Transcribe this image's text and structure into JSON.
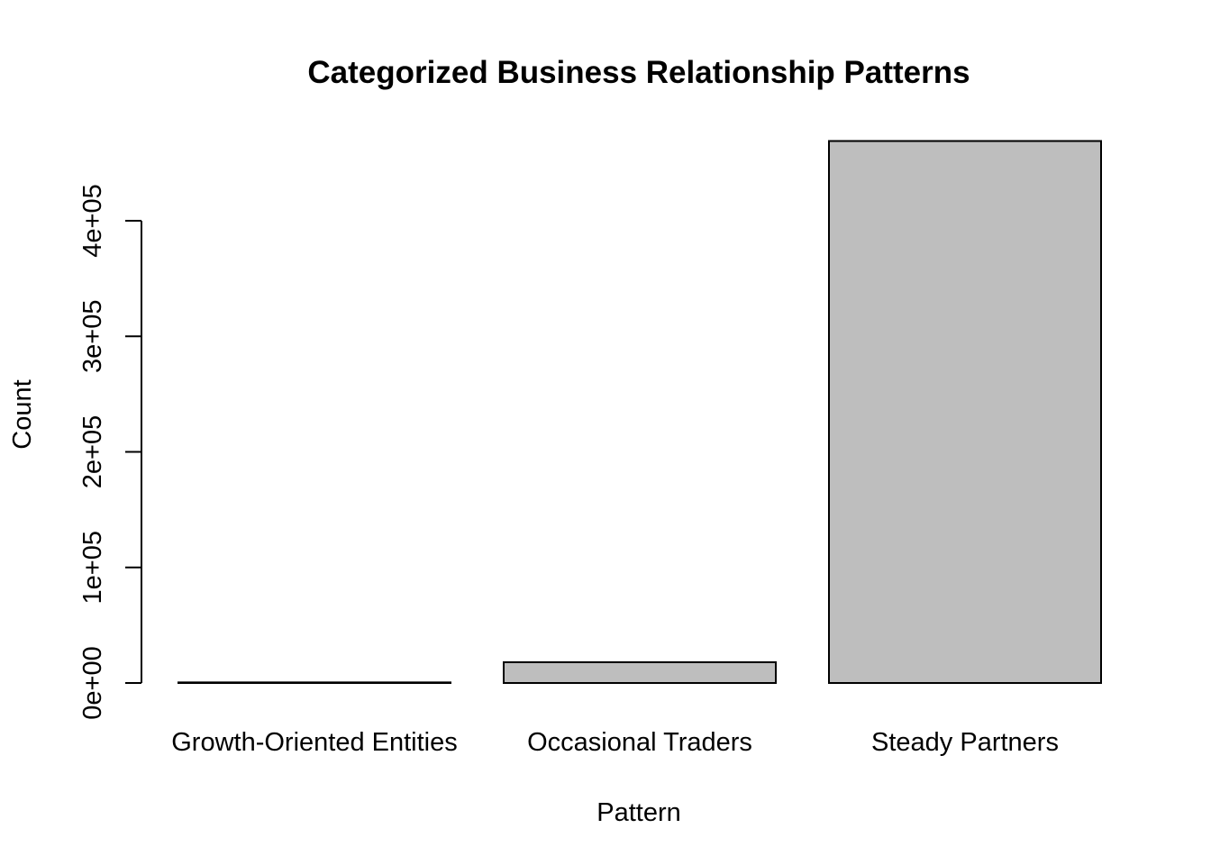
{
  "chart_data": {
    "type": "bar",
    "title": "Categorized Business Relationship Patterns",
    "xlabel": "Pattern",
    "ylabel": "Count",
    "categories": [
      "Growth-Oriented Entities",
      "Occasional Traders",
      "Steady Partners"
    ],
    "values": [
      500,
      18000,
      469000
    ],
    "yticks": [
      0,
      100000,
      200000,
      300000,
      400000
    ],
    "ytick_labels": [
      "0e+00",
      "1e+05",
      "2e+05",
      "3e+05",
      "4e+05"
    ],
    "ylim": [
      0,
      469000
    ],
    "bar_color": "#bebebe",
    "grid": false,
    "legend": "none"
  }
}
